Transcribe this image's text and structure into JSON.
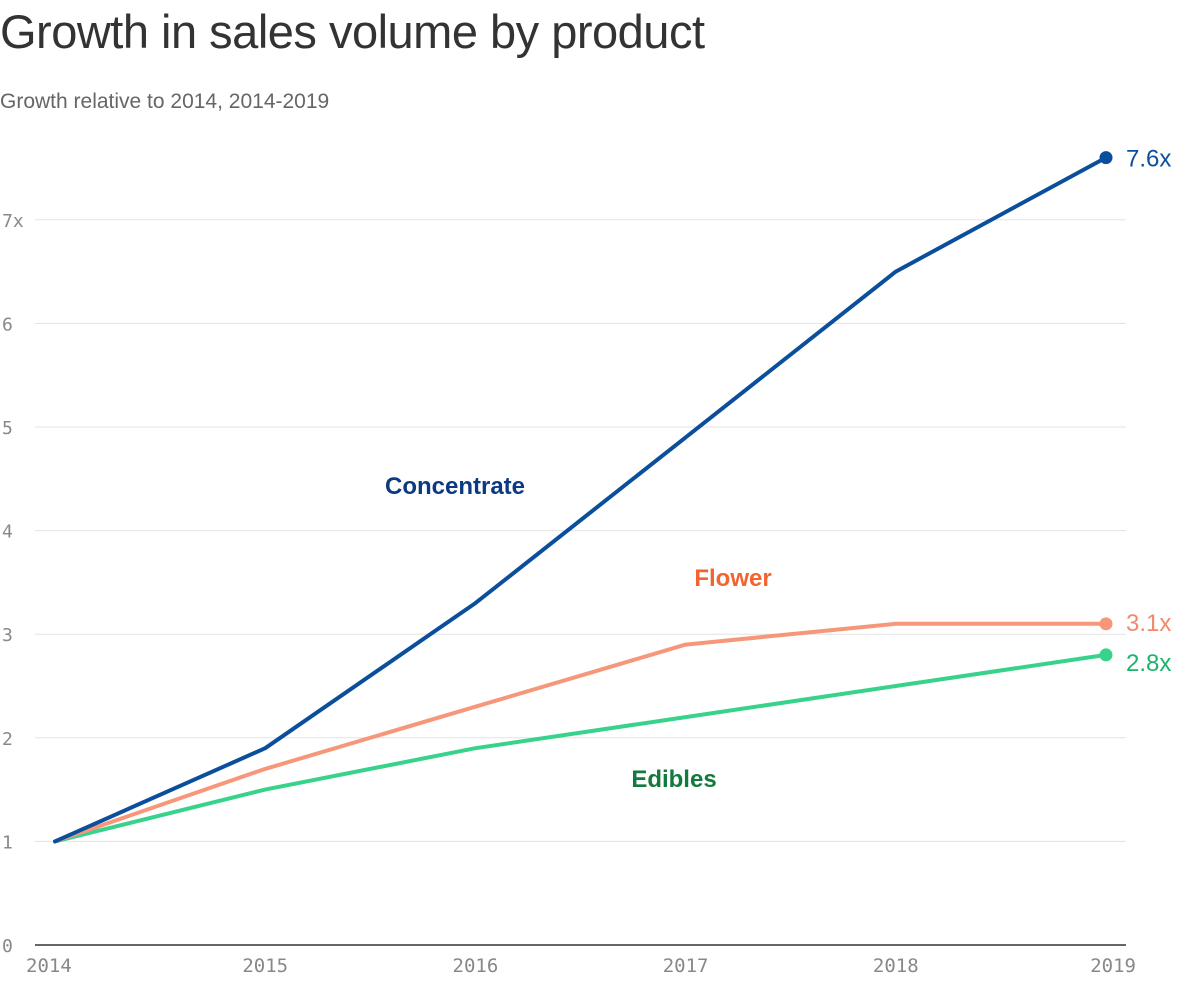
{
  "chart_data": {
    "type": "line",
    "title": "Growth in sales volume by product",
    "subtitle": "Growth relative to 2014, 2014-2019",
    "x": [
      "2014",
      "2015",
      "2016",
      "2017",
      "2018",
      "2019"
    ],
    "xlabel": "",
    "ylabel": "",
    "ylim": [
      0,
      7.6
    ],
    "yticks": [
      0,
      1,
      2,
      3,
      4,
      5,
      6,
      7
    ],
    "ytick_labels": [
      "0",
      "1",
      "2",
      "3",
      "4",
      "5",
      "6",
      "7x"
    ],
    "grid": true,
    "series": [
      {
        "name": "Concentrate",
        "color": "#0b4f9c",
        "label_color": "#0b3a82",
        "values": [
          1.0,
          1.9,
          3.3,
          4.9,
          6.5,
          7.6
        ],
        "end_label": "7.6x",
        "end_label_color": "#0b4f9c"
      },
      {
        "name": "Flower",
        "color": "#f7977a",
        "label_color": "#f26430",
        "values": [
          1.0,
          1.7,
          2.3,
          2.9,
          3.1,
          3.1
        ],
        "end_label": "3.1x",
        "end_label_color": "#f2896a"
      },
      {
        "name": "Edibles",
        "color": "#38d38a",
        "label_color": "#127a3d",
        "values": [
          1.0,
          1.5,
          1.9,
          2.2,
          2.5,
          2.8
        ],
        "end_label": "2.8x",
        "end_label_color": "#1ab56a"
      }
    ]
  }
}
